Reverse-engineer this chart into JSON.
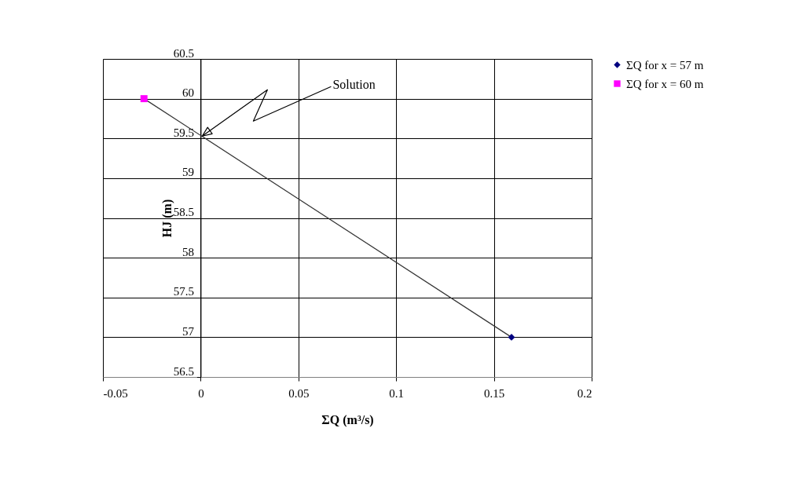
{
  "chart_data": {
    "type": "scatter",
    "xlabel": "ΣQ (m³/s)",
    "ylabel": "HJ (m)",
    "series": [
      {
        "name": "ΣQ for x = 57 m",
        "color": "#000080",
        "marker": "diamond",
        "values": [
          null,
          57
        ]
      },
      {
        "name": "ΣQ for x = 60 m",
        "color": "#ff00ff",
        "marker": "square",
        "values": [
          60,
          null
        ]
      },
      {
        "type": "line",
        "color": "#333333",
        "values": [
          60,
          57
        ]
      }
    ],
    "x": [
      -0.029,
      0.159
    ],
    "annotations": [
      {
        "text": "Solution",
        "x": 0,
        "y": 59.5
      }
    ],
    "xlim": [
      -0.05,
      0.2
    ],
    "xticks": [
      -0.05,
      0,
      0.05,
      0.1,
      0.15,
      0.2
    ],
    "ylim": [
      56.5,
      60.5
    ],
    "yticks": [
      56.5,
      57,
      57.5,
      58,
      58.5,
      59,
      59.5,
      60,
      60.5
    ],
    "grid": true,
    "legend": "right"
  }
}
